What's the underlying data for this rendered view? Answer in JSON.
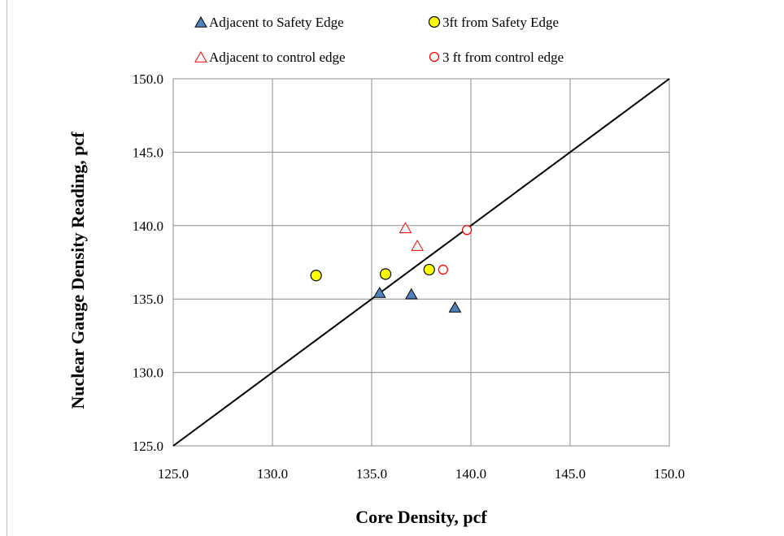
{
  "chart_data": {
    "type": "scatter",
    "xlabel": "Core Density, pcf",
    "ylabel": "Nuclear Gauge Density Reading, pcf",
    "xlim": [
      125.0,
      150.0
    ],
    "ylim": [
      125.0,
      150.0
    ],
    "xticks": [
      "125.0",
      "130.0",
      "135.0",
      "140.0",
      "145.0",
      "150.0"
    ],
    "yticks": [
      "125.0",
      "130.0",
      "135.0",
      "140.0",
      "145.0",
      "150.0"
    ],
    "grid": true,
    "legend_position": "top",
    "reference_line": {
      "label": "",
      "points": [
        [
          125.0,
          125.0
        ],
        [
          150.0,
          150.0
        ]
      ]
    },
    "series": [
      {
        "name": "Adjacent to Safety Edge",
        "marker": "triangle-filled",
        "color": "#4f81bd",
        "points": [
          [
            135.4,
            135.4
          ],
          [
            137.0,
            135.3
          ],
          [
            139.2,
            134.4
          ]
        ]
      },
      {
        "name": "3ft from Safety Edge",
        "marker": "circle-filled",
        "color": "#ffff00",
        "points": [
          [
            132.2,
            136.6
          ],
          [
            135.7,
            136.7
          ],
          [
            137.9,
            137.0
          ]
        ]
      },
      {
        "name": "Adjacent to control edge",
        "marker": "triangle-open",
        "color": "#ff0000",
        "points": [
          [
            136.7,
            139.8
          ],
          [
            137.3,
            138.6
          ]
        ]
      },
      {
        "name": "3 ft from control edge",
        "marker": "circle-open",
        "color": "#ff0000",
        "points": [
          [
            138.6,
            137.0
          ],
          [
            139.8,
            139.7
          ]
        ]
      }
    ]
  }
}
